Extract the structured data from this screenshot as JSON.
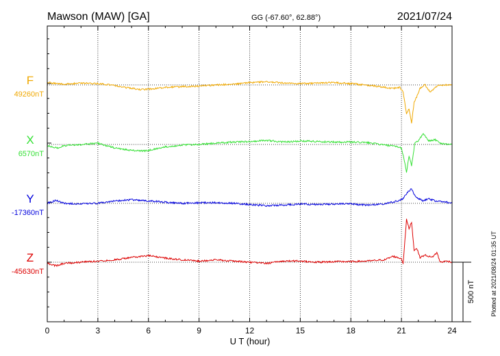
{
  "header": {
    "station": "Mawson (MAW)  [GA]",
    "coords": "GG (-67.60°,  62.88°)",
    "date": "2021/07/24"
  },
  "side_note": "Plotted at 2021/08/24 01:35 UT",
  "scale_label": "500 nT",
  "chart_data": {
    "type": "line",
    "title": "Mawson (MAW)  [GA]",
    "xlabel": "U T (hour)",
    "ylabel": "",
    "xlim": [
      0,
      24
    ],
    "x_ticks": [
      0,
      3,
      6,
      9,
      12,
      15,
      18,
      21,
      24
    ],
    "grid": true,
    "scale_bar_nT": 500,
    "series": [
      {
        "name": "F",
        "color": "#f0a800",
        "baseline_label": "49260nT",
        "baseline_nT": 49260,
        "points": [
          [
            0,
            20
          ],
          [
            0.3,
            15
          ],
          [
            0.6,
            10
          ],
          [
            1,
            5
          ],
          [
            2,
            15
          ],
          [
            3,
            10
          ],
          [
            4,
            -5
          ],
          [
            4.8,
            -25
          ],
          [
            5.5,
            -40
          ],
          [
            6.5,
            -30
          ],
          [
            7,
            -20
          ],
          [
            8,
            -15
          ],
          [
            9,
            -10
          ],
          [
            10,
            0
          ],
          [
            11,
            5
          ],
          [
            12,
            20
          ],
          [
            13,
            25
          ],
          [
            14,
            15
          ],
          [
            15,
            10
          ],
          [
            16,
            15
          ],
          [
            17,
            20
          ],
          [
            18,
            10
          ],
          [
            19.5,
            -10
          ],
          [
            20.5,
            -30
          ],
          [
            20.9,
            -20
          ],
          [
            21.1,
            -60
          ],
          [
            21.3,
            -250
          ],
          [
            21.45,
            -200
          ],
          [
            21.6,
            -320
          ],
          [
            21.75,
            -150
          ],
          [
            21.9,
            -100
          ],
          [
            22.1,
            -30
          ],
          [
            22.4,
            0
          ],
          [
            22.7,
            -60
          ],
          [
            23,
            -20
          ],
          [
            23.3,
            0
          ],
          [
            23.7,
            0
          ],
          [
            24,
            0
          ]
        ]
      },
      {
        "name": "X",
        "color": "#33e033",
        "baseline_label": "6570nT",
        "baseline_nT": 6570,
        "points": [
          [
            0,
            -10
          ],
          [
            0.6,
            -30
          ],
          [
            1,
            -10
          ],
          [
            2,
            0
          ],
          [
            3,
            10
          ],
          [
            4,
            -30
          ],
          [
            5,
            -50
          ],
          [
            5.8,
            -55
          ],
          [
            6.5,
            -35
          ],
          [
            7,
            -20
          ],
          [
            8,
            -5
          ],
          [
            9,
            0
          ],
          [
            10,
            10
          ],
          [
            11,
            20
          ],
          [
            12,
            25
          ],
          [
            13,
            35
          ],
          [
            14,
            20
          ],
          [
            15,
            30
          ],
          [
            16,
            25
          ],
          [
            17,
            20
          ],
          [
            18,
            20
          ],
          [
            19,
            15
          ],
          [
            20,
            -5
          ],
          [
            20.8,
            -20
          ],
          [
            21,
            -30
          ],
          [
            21.15,
            -120
          ],
          [
            21.3,
            -230
          ],
          [
            21.45,
            -100
          ],
          [
            21.6,
            -180
          ],
          [
            21.8,
            20
          ],
          [
            22,
            30
          ],
          [
            22.3,
            90
          ],
          [
            22.6,
            30
          ],
          [
            23,
            40
          ],
          [
            23.3,
            10
          ],
          [
            24,
            0
          ]
        ]
      },
      {
        "name": "Y",
        "color": "#0000dd",
        "baseline_label": "-17360nT",
        "baseline_nT": -17360,
        "points": [
          [
            0,
            0
          ],
          [
            0.5,
            25
          ],
          [
            1,
            0
          ],
          [
            2,
            -5
          ],
          [
            3,
            0
          ],
          [
            4,
            20
          ],
          [
            5,
            30
          ],
          [
            6,
            20
          ],
          [
            7,
            10
          ],
          [
            8,
            0
          ],
          [
            9,
            5
          ],
          [
            10,
            5
          ],
          [
            11,
            0
          ],
          [
            12,
            -10
          ],
          [
            13,
            -20
          ],
          [
            14,
            -15
          ],
          [
            15,
            -5
          ],
          [
            16,
            -10
          ],
          [
            17,
            -5
          ],
          [
            18,
            -5
          ],
          [
            19,
            -15
          ],
          [
            20,
            -5
          ],
          [
            20.8,
            20
          ],
          [
            21.1,
            40
          ],
          [
            21.4,
            100
          ],
          [
            21.6,
            120
          ],
          [
            21.8,
            60
          ],
          [
            22,
            40
          ],
          [
            22.3,
            20
          ],
          [
            22.6,
            40
          ],
          [
            23,
            20
          ],
          [
            23.5,
            15
          ],
          [
            24,
            0
          ]
        ]
      },
      {
        "name": "Z",
        "color": "#dd0000",
        "baseline_label": "-45630nT",
        "baseline_nT": -45630,
        "points": [
          [
            0,
            -10
          ],
          [
            0.5,
            -30
          ],
          [
            1,
            -10
          ],
          [
            2,
            0
          ],
          [
            3,
            10
          ],
          [
            4,
            20
          ],
          [
            5,
            40
          ],
          [
            6,
            55
          ],
          [
            7,
            35
          ],
          [
            8,
            20
          ],
          [
            9,
            10
          ],
          [
            10,
            20
          ],
          [
            11,
            10
          ],
          [
            12,
            0
          ],
          [
            13,
            -10
          ],
          [
            14,
            10
          ],
          [
            15,
            10
          ],
          [
            16,
            0
          ],
          [
            17,
            5
          ],
          [
            18,
            5
          ],
          [
            19,
            10
          ],
          [
            20,
            20
          ],
          [
            20.5,
            50
          ],
          [
            21,
            30
          ],
          [
            21.1,
            -10
          ],
          [
            21.3,
            360
          ],
          [
            21.45,
            280
          ],
          [
            21.6,
            340
          ],
          [
            21.75,
            100
          ],
          [
            21.9,
            120
          ],
          [
            22.1,
            40
          ],
          [
            22.4,
            60
          ],
          [
            22.8,
            40
          ],
          [
            23.1,
            80
          ],
          [
            23.3,
            0
          ],
          [
            23.7,
            10
          ],
          [
            24,
            0
          ]
        ]
      }
    ]
  }
}
